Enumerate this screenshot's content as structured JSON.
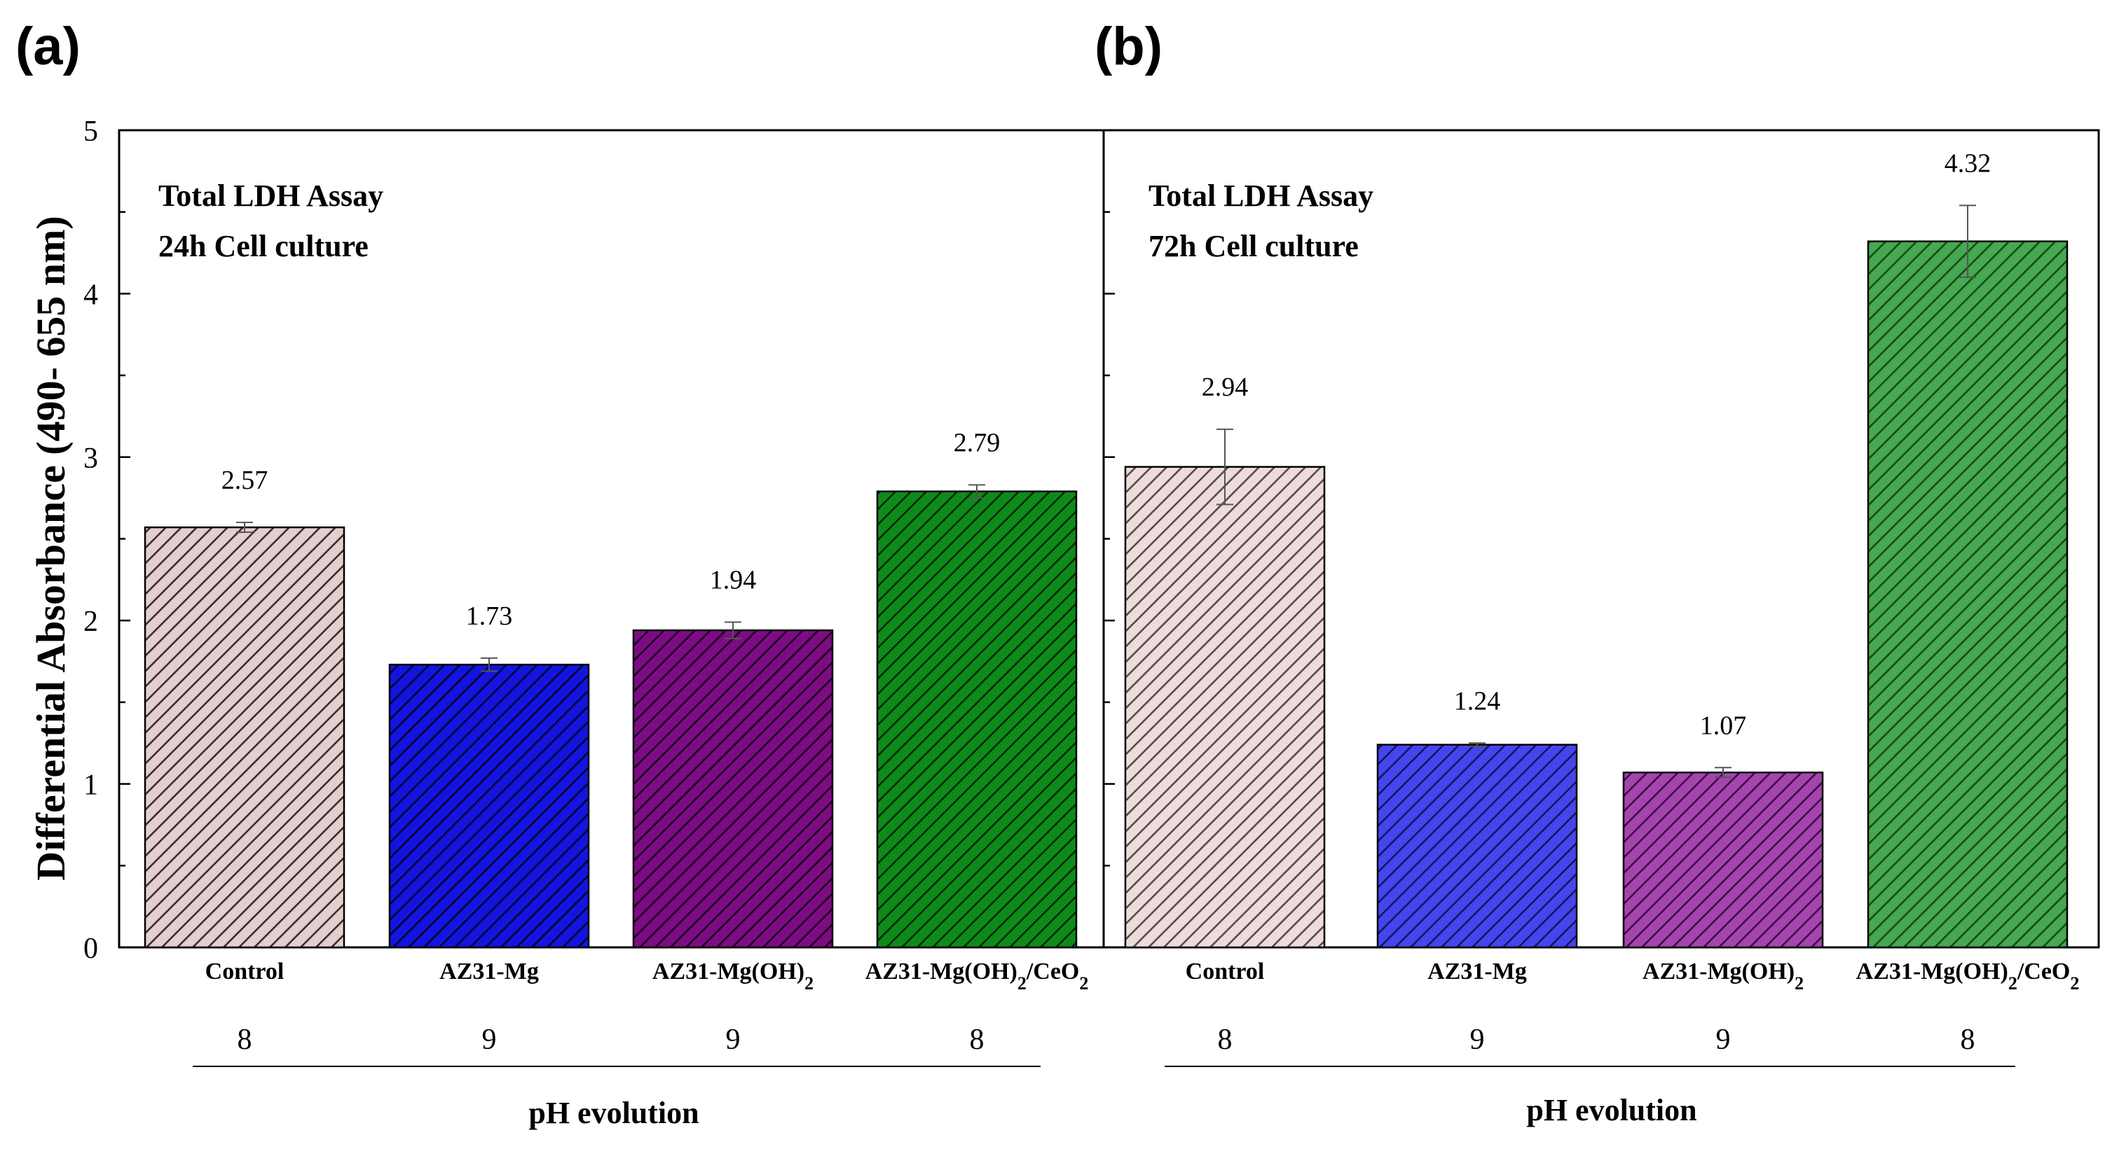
{
  "figure": {
    "y_axis_label": "Differential Absorbance (490- 655 nm)",
    "ph_label": "pH evolution",
    "categories_display": [
      {
        "main": "Control",
        "sub1": "",
        "mid": "",
        "sub2": "",
        "tail": ""
      },
      {
        "main": "AZ31-Mg",
        "sub1": "",
        "mid": "",
        "sub2": "",
        "tail": ""
      },
      {
        "main": "AZ31-Mg(OH)",
        "sub1": "2",
        "mid": "",
        "sub2": "",
        "tail": ""
      },
      {
        "main": "AZ31-Mg(OH)",
        "sub1": "2",
        "mid": "/CeO",
        "sub2": "2",
        "tail": ""
      }
    ]
  },
  "chart_data": [
    {
      "type": "bar",
      "panel_label": "(a)",
      "title_line1": "Total LDH Assay",
      "title_line2": "24h Cell culture",
      "categories": [
        "Control",
        "AZ31-Mg",
        "AZ31-Mg(OH)2",
        "AZ31-Mg(OH)2/CeO2"
      ],
      "values": [
        2.57,
        1.73,
        1.94,
        2.79
      ],
      "value_labels": [
        "2.57",
        "1.73",
        "1.94",
        "2.79"
      ],
      "errors": [
        0.03,
        0.04,
        0.05,
        0.04
      ],
      "ph_values": [
        "8",
        "9",
        "9",
        "8"
      ],
      "colors": [
        "#e3cfcf",
        "#1414e0",
        "#7d0c82",
        "#0f8a1a"
      ],
      "hatch_colors": [
        "#3a2f2f",
        "#050530",
        "#200024",
        "#032b06"
      ],
      "ylim": [
        0,
        5
      ],
      "yticks": [
        "0",
        "1",
        "2",
        "3",
        "4",
        "5"
      ],
      "ylabel": "Differential Absorbance (490- 655 nm)",
      "xlabel": "pH evolution"
    },
    {
      "type": "bar",
      "panel_label": "(b)",
      "title_line1": "Total LDH Assay",
      "title_line2": "72h Cell culture",
      "categories": [
        "Control",
        "AZ31-Mg",
        "AZ31-Mg(OH)2",
        "AZ31-Mg(OH)2/CeO2"
      ],
      "values": [
        2.94,
        1.24,
        1.07,
        4.32
      ],
      "value_labels": [
        "2.94",
        "1.24",
        "1.07",
        "4.32"
      ],
      "errors": [
        0.23,
        0.01,
        0.03,
        0.22
      ],
      "ph_values": [
        "8",
        "9",
        "9",
        "8"
      ],
      "colors": [
        "#ecdcdc",
        "#4545ee",
        "#a445ad",
        "#46a851"
      ],
      "hatch_colors": [
        "#5a4a4a",
        "#151560",
        "#3d0d45",
        "#124d18"
      ],
      "ylim": [
        0,
        5
      ],
      "yticks": [
        "0",
        "1",
        "2",
        "3",
        "4",
        "5"
      ],
      "ylabel": "",
      "xlabel": "pH evolution"
    }
  ]
}
